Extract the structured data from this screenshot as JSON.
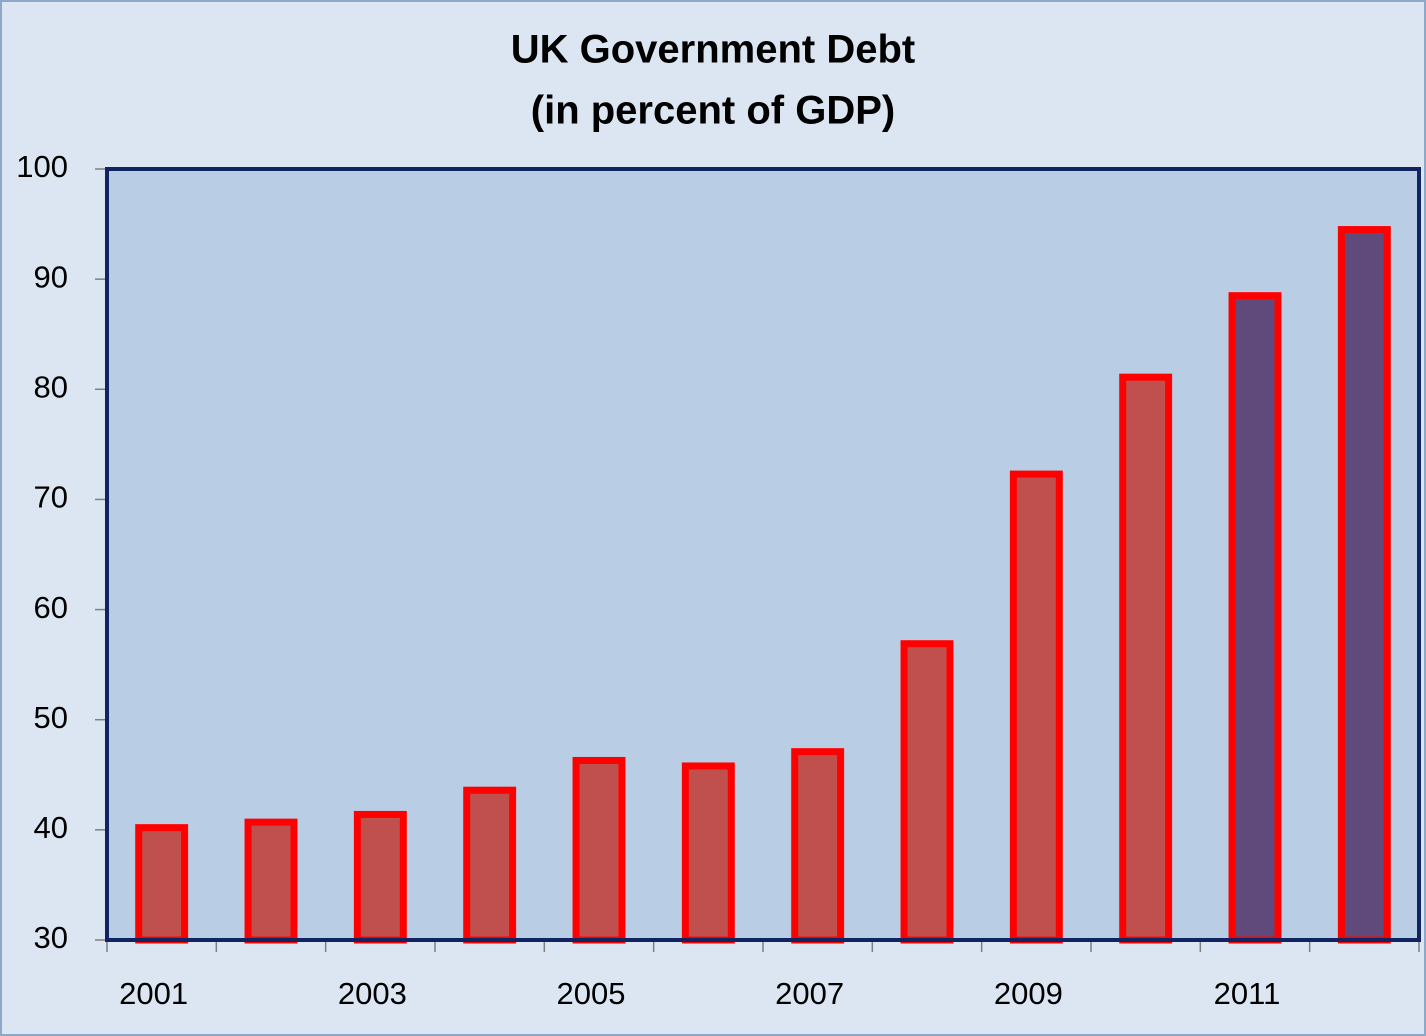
{
  "chart_data": {
    "type": "bar",
    "title": "UK Government Debt",
    "subtitle": "(in percent of GDP)",
    "categories": [
      "2001",
      null,
      "2003",
      null,
      "2005",
      null,
      "2007",
      null,
      "2009",
      null,
      "2011",
      null
    ],
    "values": [
      40.2,
      40.7,
      41.4,
      43.6,
      46.3,
      45.8,
      47.1,
      56.9,
      72.3,
      81.1,
      88.5,
      94.5
    ],
    "colors": [
      "#c0504d",
      "#c0504d",
      "#c0504d",
      "#c0504d",
      "#c0504d",
      "#c0504d",
      "#c0504d",
      "#c0504d",
      "#c0504d",
      "#c0504d",
      "#604a7b",
      "#604a7b"
    ],
    "edgecolor": "#ff0000",
    "ylim": [
      30,
      100
    ],
    "yticks": [
      30,
      40,
      50,
      60,
      70,
      80,
      90,
      100
    ],
    "grid": false
  }
}
